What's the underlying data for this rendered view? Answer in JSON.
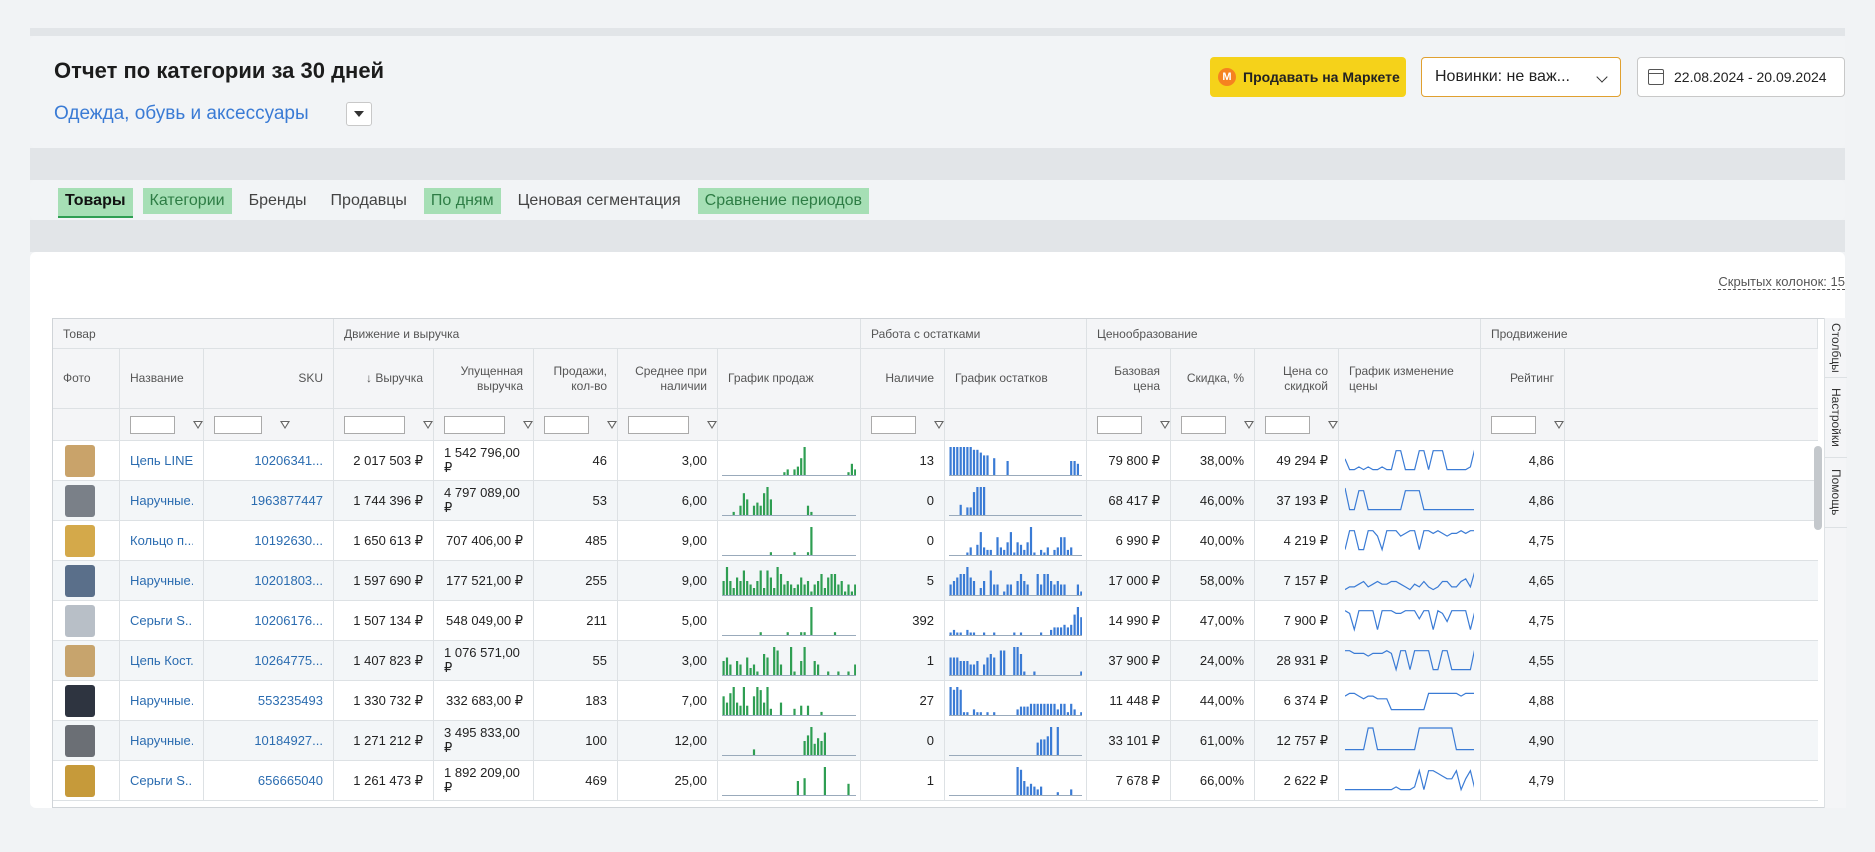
{
  "header": {
    "title": "Отчет по категории за 30 дней",
    "category": "Одежда, обувь и аксессуары",
    "market_button": "Продавать на Маркете",
    "market_logo": "M",
    "novelty_select": "Новинки: не важ...",
    "date_range": "22.08.2024 - 20.09.2024"
  },
  "tabs": [
    {
      "label": "Товары",
      "state": "active"
    },
    {
      "label": "Категории",
      "state": "green"
    },
    {
      "label": "Бренды",
      "state": "plain"
    },
    {
      "label": "Продавцы",
      "state": "plain"
    },
    {
      "label": "По дням",
      "state": "green"
    },
    {
      "label": "Ценовая сегментация",
      "state": "plain"
    },
    {
      "label": "Сравнение периодов",
      "state": "green"
    }
  ],
  "hidden_columns": "Скрытых колонок: 15",
  "table": {
    "groups": [
      "Товар",
      "Движение и выручка",
      "Работа с остатками",
      "Ценообразование",
      "Продвижение"
    ],
    "columns": {
      "photo": "Фото",
      "name": "Название",
      "sku": "SKU",
      "revenue": "↓ Выручка",
      "lost": "Упущенная выручка",
      "sales": "Продажи, кол-во",
      "avg": "Среднее при наличии",
      "sales_chart": "График продаж",
      "stock": "Наличие",
      "stock_chart": "График остатков",
      "base_price": "Базовая цена",
      "discount": "Скидка, %",
      "disc_price": "Цена со скидкой",
      "price_chart": "График изменение цены",
      "rating": "Рейтинг"
    },
    "rows": [
      {
        "name": "Цепь LINE...",
        "sku": "10206341...",
        "revenue": "2 017 503 ₽",
        "lost": "1 542 796,00 ₽",
        "sales": "46",
        "avg": "3,00",
        "stock": "13",
        "base_price": "79 800 ₽",
        "discount": "38,00%",
        "disc_price": "49 294 ₽",
        "rating": "4,86",
        "photo_color": "#c9a36a",
        "sales_series": [
          0,
          0,
          0,
          0,
          0,
          0,
          0,
          0,
          0,
          0,
          0,
          0,
          0,
          0,
          0,
          0,
          0,
          0,
          1,
          2,
          0,
          2,
          3,
          6,
          10,
          0,
          0,
          0,
          0,
          0,
          0,
          0,
          0,
          0,
          0,
          0,
          0,
          1,
          4,
          2
        ],
        "stock_series": [
          10,
          10,
          10,
          10,
          10,
          10,
          10,
          9,
          9,
          8,
          7,
          7,
          0,
          6,
          0,
          0,
          0,
          5,
          0,
          0,
          0,
          0,
          0,
          0,
          0,
          0,
          0,
          0,
          0,
          0,
          0,
          0,
          0,
          0,
          0,
          0,
          5,
          5,
          4,
          0
        ],
        "price_series": [
          6,
          2,
          2,
          3,
          2,
          3,
          2,
          2,
          3,
          2,
          2,
          9,
          9,
          2,
          2,
          2,
          9,
          9,
          2,
          9,
          9,
          9,
          2,
          2,
          2,
          2,
          2,
          3,
          10
        ]
      },
      {
        "name": "Наручные...",
        "sku": "1963877447",
        "revenue": "1 744 396 ₽",
        "lost": "4 797 089,00 ₽",
        "sales": "53",
        "avg": "6,00",
        "stock": "0",
        "base_price": "68 417 ₽",
        "discount": "46,00%",
        "disc_price": "37 193 ₽",
        "rating": "4,86",
        "photo_color": "#7a8088",
        "sales_series": [
          0,
          0,
          0,
          1,
          0,
          3,
          7,
          5,
          0,
          3,
          4,
          3,
          7,
          9,
          5,
          0,
          0,
          0,
          0,
          0,
          0,
          0,
          0,
          0,
          0,
          3,
          1,
          0,
          0,
          0,
          0,
          0,
          0,
          0,
          0,
          0,
          0,
          0,
          0,
          0
        ],
        "stock_series": [
          0,
          0,
          0,
          4,
          0,
          3,
          3,
          9,
          11,
          11,
          11,
          0,
          0,
          0,
          0,
          0,
          0,
          0,
          0,
          0,
          0,
          0,
          0,
          0,
          0,
          0,
          0,
          0,
          0,
          0,
          0,
          0,
          0,
          0,
          0,
          0,
          0,
          0,
          0,
          0
        ],
        "price_series": [
          10,
          2,
          2,
          9,
          9,
          2,
          2,
          2,
          2,
          2,
          2,
          2,
          2,
          9,
          9,
          9,
          9,
          2,
          2,
          2,
          2,
          2,
          2,
          2,
          2,
          2,
          2,
          2,
          2
        ]
      },
      {
        "name": "Кольцо п...",
        "sku": "10192630...",
        "revenue": "1 650 613 ₽",
        "lost": "707 406,00 ₽",
        "sales": "485",
        "avg": "9,00",
        "stock": "0",
        "base_price": "6 990 ₽",
        "discount": "40,00%",
        "disc_price": "4 219 ₽",
        "rating": "4,75",
        "photo_color": "#d4a94a",
        "sales_series": [
          0,
          0,
          0,
          0,
          0,
          0,
          0,
          0,
          0,
          0,
          0,
          0,
          0,
          0,
          1,
          0,
          0,
          0,
          0,
          0,
          0,
          1,
          0,
          0,
          0,
          1,
          10,
          0,
          0,
          0,
          0,
          0,
          0,
          0,
          0,
          0,
          0,
          0,
          0,
          0
        ],
        "stock_series": [
          0,
          0,
          0,
          0,
          0,
          1,
          3,
          0,
          4,
          9,
          3,
          2,
          2,
          0,
          7,
          3,
          2,
          5,
          9,
          1,
          5,
          4,
          2,
          5,
          11,
          1,
          0,
          2,
          1,
          3,
          0,
          2,
          3,
          7,
          7,
          2,
          3,
          0,
          0,
          0
        ],
        "price_series": [
          2,
          9,
          9,
          2,
          2,
          9,
          9,
          7,
          2,
          9,
          9,
          9,
          7,
          8,
          9,
          9,
          2,
          9,
          9,
          8,
          9,
          8,
          7,
          8,
          8,
          9,
          8,
          9,
          9
        ]
      },
      {
        "name": "Наручные...",
        "sku": "10201803...",
        "revenue": "1 597 690 ₽",
        "lost": "177 521,00 ₽",
        "sales": "255",
        "avg": "9,00",
        "stock": "5",
        "base_price": "17 000 ₽",
        "discount": "58,00%",
        "disc_price": "7 157 ₽",
        "rating": "4,65",
        "photo_color": "#5a6f8a",
        "sales_series": [
          4,
          8,
          4,
          2,
          5,
          4,
          7,
          4,
          3,
          2,
          4,
          7,
          2,
          7,
          5,
          2,
          8,
          6,
          3,
          4,
          3,
          2,
          3,
          5,
          3,
          4,
          1,
          3,
          4,
          6,
          2,
          5,
          6,
          6,
          3,
          4,
          1,
          3,
          1,
          3
        ],
        "stock_series": [
          3,
          4,
          5,
          6,
          6,
          8,
          5,
          4,
          0,
          2,
          4,
          0,
          7,
          3,
          3,
          0,
          1,
          3,
          3,
          0,
          4,
          6,
          4,
          3,
          0,
          0,
          6,
          3,
          6,
          6,
          4,
          3,
          4,
          3,
          3,
          0,
          0,
          0,
          3,
          1
        ],
        "price_series": [
          2,
          3,
          3,
          4,
          5,
          3,
          4,
          5,
          4,
          4,
          5,
          5,
          4,
          3,
          2,
          4,
          3,
          5,
          3,
          2,
          3,
          5,
          5,
          3,
          3,
          5,
          6,
          3,
          9
        ]
      },
      {
        "name": "Серьги S...",
        "sku": "10206176...",
        "revenue": "1 507 134 ₽",
        "lost": "548 049,00 ₽",
        "sales": "211",
        "avg": "5,00",
        "stock": "392",
        "base_price": "14 990 ₽",
        "discount": "47,00%",
        "disc_price": "7 900 ₽",
        "rating": "4,75",
        "photo_color": "#b8bfc7",
        "sales_series": [
          0,
          0,
          0,
          0,
          0,
          0,
          0,
          0,
          0,
          0,
          0,
          1,
          0,
          0,
          0,
          0,
          0,
          0,
          0,
          1,
          0,
          0,
          0,
          1,
          1,
          0,
          10,
          0,
          0,
          0,
          0,
          0,
          0,
          1,
          0,
          0,
          0,
          0,
          0,
          0
        ],
        "stock_series": [
          1,
          2,
          1,
          1,
          0,
          2,
          1,
          1,
          0,
          0,
          1,
          0,
          0,
          1,
          0,
          0,
          0,
          0,
          0,
          1,
          0,
          1,
          0,
          0,
          0,
          0,
          0,
          1,
          0,
          0,
          2,
          3,
          3,
          3,
          4,
          3,
          4,
          8,
          11,
          7
        ],
        "price_series": [
          9,
          8,
          2,
          9,
          9,
          9,
          9,
          2,
          9,
          9,
          9,
          8,
          8,
          9,
          9,
          9,
          6,
          9,
          9,
          2,
          9,
          8,
          5,
          9,
          9,
          9,
          9,
          2,
          9
        ]
      },
      {
        "name": "Цепь Кост...",
        "sku": "10264775...",
        "revenue": "1 407 823 ₽",
        "lost": "1 076 571,00 ₽",
        "sales": "55",
        "avg": "3,00",
        "stock": "1",
        "base_price": "37 900 ₽",
        "discount": "24,00%",
        "disc_price": "28 931 ₽",
        "rating": "4,55",
        "photo_color": "#c7a46d",
        "sales_series": [
          4,
          5,
          3,
          0,
          4,
          3,
          0,
          5,
          2,
          3,
          1,
          0,
          6,
          5,
          0,
          8,
          7,
          3,
          0,
          0,
          8,
          1,
          0,
          4,
          8,
          0,
          0,
          4,
          3,
          0,
          0,
          1,
          0,
          0,
          1,
          0,
          0,
          1,
          0,
          3
        ],
        "stock_series": [
          5,
          5,
          5,
          4,
          4,
          4,
          3,
          3,
          4,
          0,
          3,
          5,
          6,
          5,
          0,
          7,
          7,
          0,
          0,
          8,
          8,
          6,
          1,
          0,
          0,
          1,
          0,
          0,
          0,
          0,
          0,
          0,
          0,
          0,
          0,
          0,
          0,
          0,
          0,
          1
        ],
        "price_series": [
          9,
          9,
          8,
          8,
          8,
          7,
          8,
          8,
          8,
          9,
          8,
          2,
          9,
          9,
          2,
          9,
          9,
          9,
          9,
          2,
          2,
          9,
          9,
          2,
          2,
          2,
          2,
          2,
          10
        ]
      },
      {
        "name": "Наручные...",
        "sku": "553235493",
        "revenue": "1 330 732 ₽",
        "lost": "332 683,00 ₽",
        "sales": "183",
        "avg": "7,00",
        "stock": "27",
        "base_price": "11 448 ₽",
        "discount": "44,00%",
        "disc_price": "6 374 ₽",
        "rating": "4,88",
        "photo_color": "#2e3440",
        "sales_series": [
          6,
          4,
          7,
          9,
          4,
          3,
          9,
          3,
          0,
          6,
          9,
          8,
          4,
          9,
          2,
          0,
          0,
          4,
          0,
          0,
          0,
          2,
          0,
          3,
          0,
          3,
          0,
          0,
          0,
          1,
          0,
          0,
          0,
          0,
          0,
          0,
          0,
          0,
          0,
          0
        ],
        "stock_series": [
          10,
          9,
          10,
          9,
          1,
          1,
          0,
          2,
          1,
          1,
          0,
          1,
          0,
          1,
          0,
          0,
          0,
          0,
          0,
          0,
          2,
          3,
          3,
          3,
          4,
          4,
          4,
          4,
          4,
          4,
          4,
          4,
          2,
          4,
          4,
          1,
          4,
          2,
          0,
          1
        ],
        "price_series": [
          7,
          8,
          8,
          7,
          6,
          7,
          7,
          6,
          6,
          6,
          2,
          2,
          2,
          2,
          2,
          2,
          2,
          2,
          8,
          8,
          8,
          8,
          8,
          8,
          8,
          7,
          8,
          8,
          8
        ]
      },
      {
        "name": "Наручные...",
        "sku": "10184927...",
        "revenue": "1 271 212 ₽",
        "lost": "3 495 833,00 ₽",
        "sales": "100",
        "avg": "12,00",
        "stock": "0",
        "base_price": "33 101 ₽",
        "discount": "61,00%",
        "disc_price": "12 757 ₽",
        "rating": "4,90",
        "photo_color": "#6b6f75",
        "sales_series": [
          0,
          0,
          0,
          0,
          0,
          0,
          0,
          0,
          0,
          2,
          0,
          0,
          0,
          0,
          0,
          0,
          0,
          0,
          0,
          0,
          0,
          0,
          0,
          0,
          5,
          7,
          10,
          4,
          6,
          5,
          8,
          0,
          0,
          0,
          0,
          0,
          0,
          0,
          0,
          0
        ],
        "stock_series": [
          0,
          0,
          0,
          0,
          0,
          0,
          0,
          0,
          0,
          0,
          0,
          0,
          0,
          0,
          0,
          0,
          0,
          0,
          0,
          0,
          0,
          0,
          0,
          0,
          0,
          0,
          4,
          5,
          5,
          6,
          9,
          0,
          9,
          0,
          0,
          0,
          0,
          0,
          0,
          0
        ],
        "price_series": [
          2,
          2,
          2,
          2,
          2,
          10,
          10,
          2,
          2,
          2,
          2,
          2,
          2,
          2,
          2,
          2,
          10,
          10,
          10,
          10,
          10,
          10,
          10,
          10,
          2,
          2,
          2,
          2,
          2
        ]
      },
      {
        "name": "Серьги S...",
        "sku": "656665040",
        "revenue": "1 261 473 ₽",
        "lost": "1 892 209,00 ₽",
        "sales": "469",
        "avg": "25,00",
        "stock": "1",
        "base_price": "7 678 ₽",
        "discount": "66,00%",
        "disc_price": "2 622 ₽",
        "rating": "4,79",
        "photo_color": "#c69a3a",
        "sales_series": [
          0,
          0,
          0,
          0,
          0,
          0,
          0,
          0,
          0,
          0,
          0,
          0,
          0,
          0,
          0,
          0,
          0,
          0,
          0,
          0,
          0,
          0,
          5,
          0,
          6,
          0,
          0,
          0,
          0,
          0,
          10,
          0,
          0,
          0,
          0,
          0,
          0,
          4,
          0,
          0
        ],
        "stock_series": [
          0,
          0,
          0,
          0,
          0,
          0,
          0,
          0,
          0,
          0,
          0,
          0,
          0,
          0,
          0,
          0,
          0,
          0,
          0,
          0,
          10,
          9,
          5,
          3,
          4,
          3,
          2,
          3,
          0,
          0,
          0,
          0,
          1,
          0,
          0,
          0,
          2,
          0,
          0,
          0
        ],
        "price_series": [
          2,
          2,
          2,
          2,
          2,
          2,
          2,
          2,
          2,
          2,
          2,
          3,
          2,
          2,
          2,
          3,
          9,
          2,
          9,
          9,
          8,
          7,
          6,
          6,
          9,
          2,
          6,
          9,
          2
        ]
      }
    ]
  },
  "side_panel": [
    "Столбцы",
    "Настройки",
    "Помощь"
  ],
  "colors": {
    "accent_blue": "#3a7bd5",
    "sales_bar": "#2e9e52",
    "stock_bar": "#3a7bd5",
    "market_yellow": "#f5d21a",
    "tab_green": "#a6dfb5"
  }
}
